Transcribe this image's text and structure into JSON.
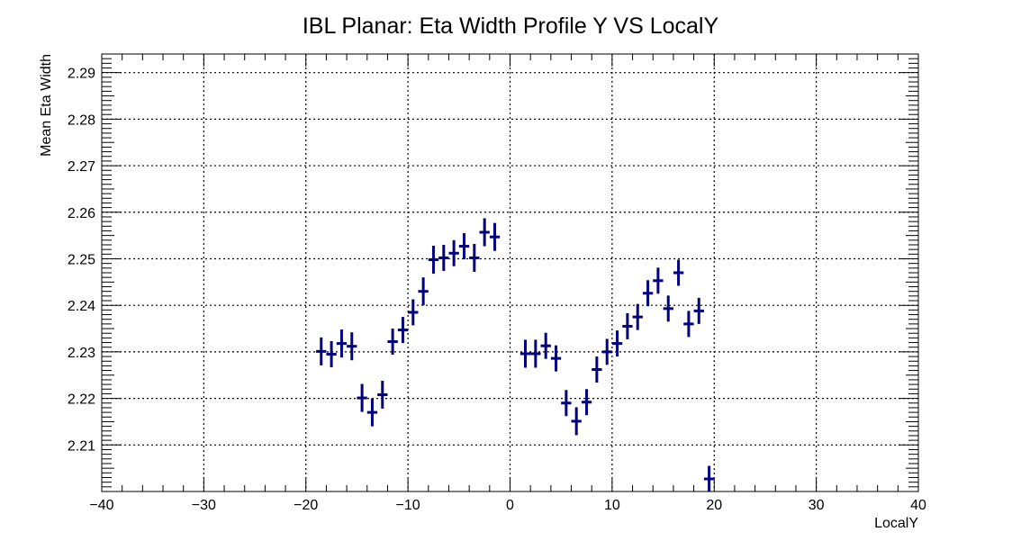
{
  "chart_data": {
    "type": "scatter",
    "title": "IBL Planar: Eta Width Profile Y VS LocalY",
    "xlabel": "LocalY",
    "ylabel": "Mean Eta Width",
    "xlim": [
      -40,
      40
    ],
    "ylim": [
      2.2,
      2.294
    ],
    "x_ticks": [
      -40,
      -30,
      -20,
      -10,
      0,
      10,
      20,
      30,
      40
    ],
    "x_tick_labels": [
      "−40",
      "−30",
      "−20",
      "−10",
      "0",
      "10",
      "20",
      "30",
      "40"
    ],
    "y_ticks": [
      2.21,
      2.22,
      2.23,
      2.24,
      2.25,
      2.26,
      2.27,
      2.28,
      2.29
    ],
    "y_tick_labels": [
      "2.21",
      "2.22",
      "2.23",
      "2.24",
      "2.25",
      "2.26",
      "2.27",
      "2.28",
      "2.29"
    ],
    "grid": true,
    "marker_color": "#000080",
    "x_bin_halfwidth": 0.5,
    "points": [
      {
        "x": -18.5,
        "y": 2.2301,
        "err": 0.003
      },
      {
        "x": -17.5,
        "y": 2.2295,
        "err": 0.0028
      },
      {
        "x": -16.5,
        "y": 2.2318,
        "err": 0.003
      },
      {
        "x": -15.5,
        "y": 2.2312,
        "err": 0.003
      },
      {
        "x": -14.5,
        "y": 2.2201,
        "err": 0.003
      },
      {
        "x": -13.5,
        "y": 2.217,
        "err": 0.003
      },
      {
        "x": -12.5,
        "y": 2.2208,
        "err": 0.003
      },
      {
        "x": -11.5,
        "y": 2.2322,
        "err": 0.0028
      },
      {
        "x": -10.5,
        "y": 2.2347,
        "err": 0.0028
      },
      {
        "x": -9.5,
        "y": 2.2385,
        "err": 0.0028
      },
      {
        "x": -8.5,
        "y": 2.243,
        "err": 0.003
      },
      {
        "x": -7.5,
        "y": 2.2498,
        "err": 0.003
      },
      {
        "x": -6.5,
        "y": 2.2502,
        "err": 0.0028
      },
      {
        "x": -5.5,
        "y": 2.2512,
        "err": 0.0028
      },
      {
        "x": -4.5,
        "y": 2.2527,
        "err": 0.0028
      },
      {
        "x": -3.5,
        "y": 2.2502,
        "err": 0.003
      },
      {
        "x": -2.5,
        "y": 2.2557,
        "err": 0.003
      },
      {
        "x": -1.5,
        "y": 2.2547,
        "err": 0.003
      },
      {
        "x": 1.5,
        "y": 2.2296,
        "err": 0.003
      },
      {
        "x": 2.5,
        "y": 2.2296,
        "err": 0.003
      },
      {
        "x": 3.5,
        "y": 2.2313,
        "err": 0.0028
      },
      {
        "x": 4.5,
        "y": 2.2286,
        "err": 0.0028
      },
      {
        "x": 5.5,
        "y": 2.219,
        "err": 0.0028
      },
      {
        "x": 6.5,
        "y": 2.2151,
        "err": 0.003
      },
      {
        "x": 7.5,
        "y": 2.2192,
        "err": 0.0028
      },
      {
        "x": 8.5,
        "y": 2.2262,
        "err": 0.0028
      },
      {
        "x": 9.5,
        "y": 2.23,
        "err": 0.0028
      },
      {
        "x": 10.5,
        "y": 2.2318,
        "err": 0.0028
      },
      {
        "x": 11.5,
        "y": 2.2355,
        "err": 0.0028
      },
      {
        "x": 12.5,
        "y": 2.2375,
        "err": 0.0028
      },
      {
        "x": 13.5,
        "y": 2.2426,
        "err": 0.0028
      },
      {
        "x": 14.5,
        "y": 2.2453,
        "err": 0.0028
      },
      {
        "x": 15.5,
        "y": 2.2393,
        "err": 0.0028
      },
      {
        "x": 16.5,
        "y": 2.247,
        "err": 0.0028
      },
      {
        "x": 17.5,
        "y": 2.236,
        "err": 0.0028
      },
      {
        "x": 18.5,
        "y": 2.2388,
        "err": 0.0028
      },
      {
        "x": 19.5,
        "y": 2.2027,
        "err": 0.0028
      }
    ]
  }
}
